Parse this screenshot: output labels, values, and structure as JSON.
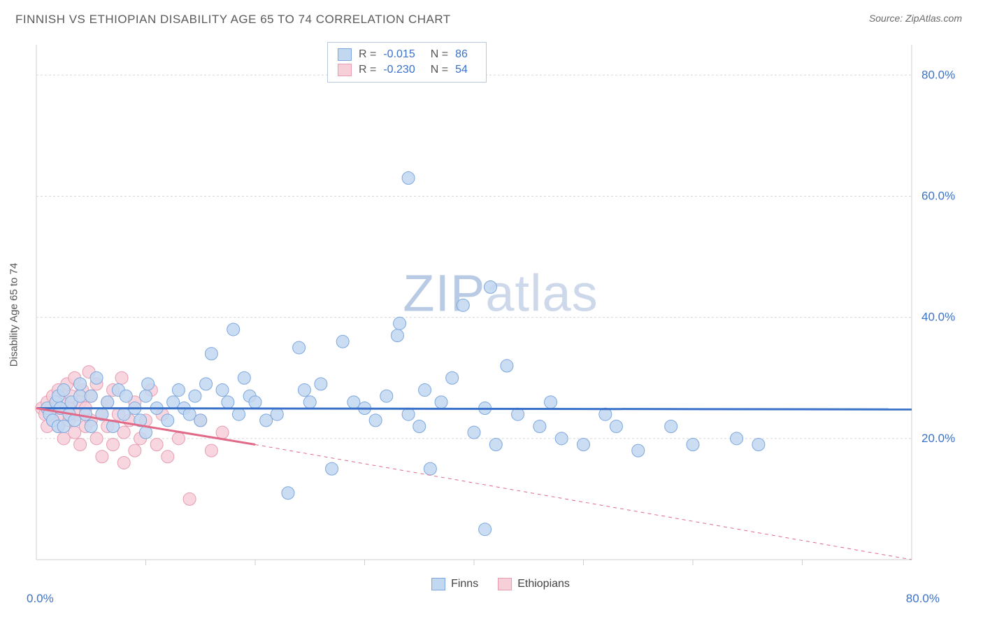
{
  "header": {
    "title": "FINNISH VS ETHIOPIAN DISABILITY AGE 65 TO 74 CORRELATION CHART",
    "source_prefix": "Source: ",
    "source_name": "ZipAtlas.com"
  },
  "chart": {
    "type": "scatter",
    "ylabel": "Disability Age 65 to 74",
    "watermark_a": "ZIP",
    "watermark_b": "atlas",
    "xlim": [
      0,
      80
    ],
    "ylim": [
      0,
      85
    ],
    "x_axis_labels": {
      "min": "0.0%",
      "max": "80.0%"
    },
    "y_tick_values": [
      20,
      40,
      60,
      80
    ],
    "y_tick_labels": [
      "20.0%",
      "40.0%",
      "60.0%",
      "80.0%"
    ],
    "x_ticks_minor": [
      10,
      20,
      30,
      40,
      50,
      60,
      70
    ],
    "grid_color": "#d8d8d8",
    "grid_dash": "3,3",
    "axis_color": "#cfcfcf",
    "background_color": "#ffffff",
    "point_radius": 9,
    "point_stroke_width": 1,
    "line_width": 3,
    "dash_pattern": "5,5",
    "series": [
      {
        "name": "Finns",
        "fill": "#c2d7f0",
        "stroke": "#7da7dd",
        "line_color": "#3a72c9",
        "R": "-0.015",
        "N": "86",
        "regression": {
          "x1": 0,
          "y1": 25,
          "x2": 80,
          "y2": 24.8,
          "dash_from_x": 80
        },
        "points": [
          [
            1,
            25
          ],
          [
            1.2,
            24
          ],
          [
            1.5,
            23
          ],
          [
            1.8,
            26
          ],
          [
            2,
            22
          ],
          [
            2,
            27
          ],
          [
            2.2,
            25
          ],
          [
            2.5,
            28
          ],
          [
            2.5,
            22
          ],
          [
            3,
            24
          ],
          [
            3.2,
            26
          ],
          [
            3.5,
            23
          ],
          [
            4,
            27
          ],
          [
            4,
            29
          ],
          [
            4.5,
            24
          ],
          [
            5,
            22
          ],
          [
            5,
            27
          ],
          [
            5.5,
            30
          ],
          [
            6,
            24
          ],
          [
            6.5,
            26
          ],
          [
            7,
            22
          ],
          [
            7.5,
            28
          ],
          [
            8,
            24
          ],
          [
            8.2,
            27
          ],
          [
            9,
            25
          ],
          [
            9.5,
            23
          ],
          [
            10,
            21
          ],
          [
            10,
            27
          ],
          [
            10.2,
            29
          ],
          [
            11,
            25
          ],
          [
            12,
            23
          ],
          [
            12.5,
            26
          ],
          [
            13,
            28
          ],
          [
            13.5,
            25
          ],
          [
            14,
            24
          ],
          [
            14.5,
            27
          ],
          [
            15,
            23
          ],
          [
            15.5,
            29
          ],
          [
            16,
            34
          ],
          [
            17,
            28
          ],
          [
            17.5,
            26
          ],
          [
            18,
            38
          ],
          [
            18.5,
            24
          ],
          [
            19,
            30
          ],
          [
            19.5,
            27
          ],
          [
            20,
            26
          ],
          [
            21,
            23
          ],
          [
            22,
            24
          ],
          [
            23,
            11
          ],
          [
            24,
            35
          ],
          [
            24.5,
            28
          ],
          [
            25,
            26
          ],
          [
            26,
            29
          ],
          [
            27,
            15
          ],
          [
            28,
            36
          ],
          [
            29,
            26
          ],
          [
            30,
            25
          ],
          [
            31,
            23
          ],
          [
            32,
            27
          ],
          [
            33,
            37
          ],
          [
            33.2,
            39
          ],
          [
            34,
            24
          ],
          [
            34,
            63
          ],
          [
            35,
            22
          ],
          [
            35.5,
            28
          ],
          [
            36,
            15
          ],
          [
            37,
            26
          ],
          [
            38,
            30
          ],
          [
            39,
            42
          ],
          [
            40,
            21
          ],
          [
            41,
            25
          ],
          [
            41.5,
            45
          ],
          [
            42,
            19
          ],
          [
            43,
            32
          ],
          [
            44,
            24
          ],
          [
            46,
            22
          ],
          [
            47,
            26
          ],
          [
            48,
            20
          ],
          [
            50,
            19
          ],
          [
            52,
            24
          ],
          [
            53,
            22
          ],
          [
            55,
            18
          ],
          [
            58,
            22
          ],
          [
            60,
            19
          ],
          [
            64,
            20
          ],
          [
            66,
            19
          ],
          [
            41,
            5
          ]
        ]
      },
      {
        "name": "Ethiopians",
        "fill": "#f6cfd9",
        "stroke": "#e79cb0",
        "line_color": "#e06a88",
        "R": "-0.230",
        "N": "54",
        "regression": {
          "x1": 0,
          "y1": 25,
          "x2": 20,
          "y2": 19,
          "dash_from_x": 20,
          "dash_x2": 80,
          "dash_y2": 0
        },
        "points": [
          [
            0.5,
            25
          ],
          [
            0.8,
            24
          ],
          [
            1,
            26
          ],
          [
            1,
            22
          ],
          [
            1.2,
            24.5
          ],
          [
            1.5,
            23
          ],
          [
            1.5,
            27
          ],
          [
            1.8,
            25
          ],
          [
            2,
            22
          ],
          [
            2,
            28
          ],
          [
            2.2,
            24
          ],
          [
            2.5,
            26
          ],
          [
            2.5,
            20
          ],
          [
            2.8,
            29
          ],
          [
            3,
            23
          ],
          [
            3,
            25
          ],
          [
            3.2,
            27
          ],
          [
            3.5,
            21
          ],
          [
            3.5,
            30
          ],
          [
            3.8,
            24
          ],
          [
            4,
            26
          ],
          [
            4,
            19
          ],
          [
            4.2,
            28
          ],
          [
            4.5,
            22
          ],
          [
            4.5,
            25
          ],
          [
            4.8,
            31
          ],
          [
            5,
            23
          ],
          [
            5,
            27
          ],
          [
            5.5,
            20
          ],
          [
            5.5,
            29
          ],
          [
            6,
            24
          ],
          [
            6,
            17
          ],
          [
            6.5,
            26
          ],
          [
            6.5,
            22
          ],
          [
            7,
            28
          ],
          [
            7,
            19
          ],
          [
            7.5,
            24
          ],
          [
            7.8,
            30
          ],
          [
            8,
            21
          ],
          [
            8,
            16
          ],
          [
            8.5,
            23
          ],
          [
            9,
            26
          ],
          [
            9,
            18
          ],
          [
            9.5,
            20
          ],
          [
            10,
            23
          ],
          [
            10.5,
            28
          ],
          [
            11,
            19
          ],
          [
            11.5,
            24
          ],
          [
            12,
            17
          ],
          [
            13,
            20
          ],
          [
            14,
            10
          ],
          [
            15,
            23
          ],
          [
            16,
            18
          ],
          [
            17,
            21
          ]
        ]
      }
    ],
    "bottom_legend": [
      {
        "label": "Finns",
        "swatch_fill": "#c2d7f0",
        "swatch_stroke": "#7da7dd"
      },
      {
        "label": "Ethiopians",
        "swatch_fill": "#f6cfd9",
        "swatch_stroke": "#e79cb0"
      }
    ]
  }
}
